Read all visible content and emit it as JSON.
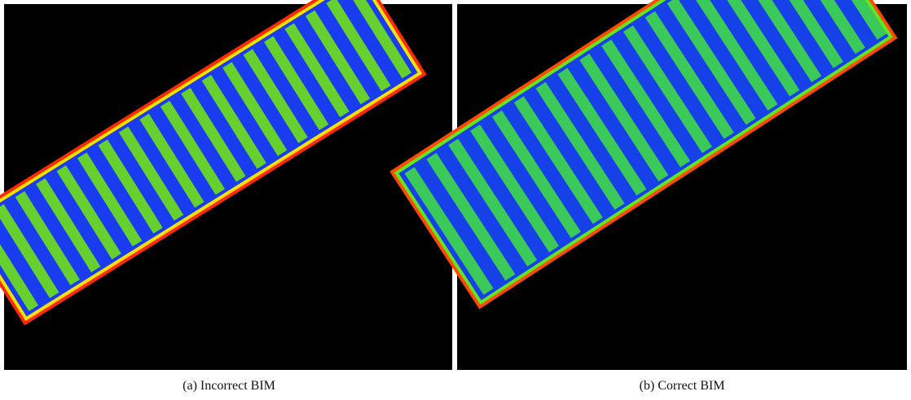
{
  "figure": {
    "panels": [
      {
        "caption": "(a) Incorrect BIM"
      },
      {
        "caption": "(b) Correct BIM"
      }
    ]
  }
}
